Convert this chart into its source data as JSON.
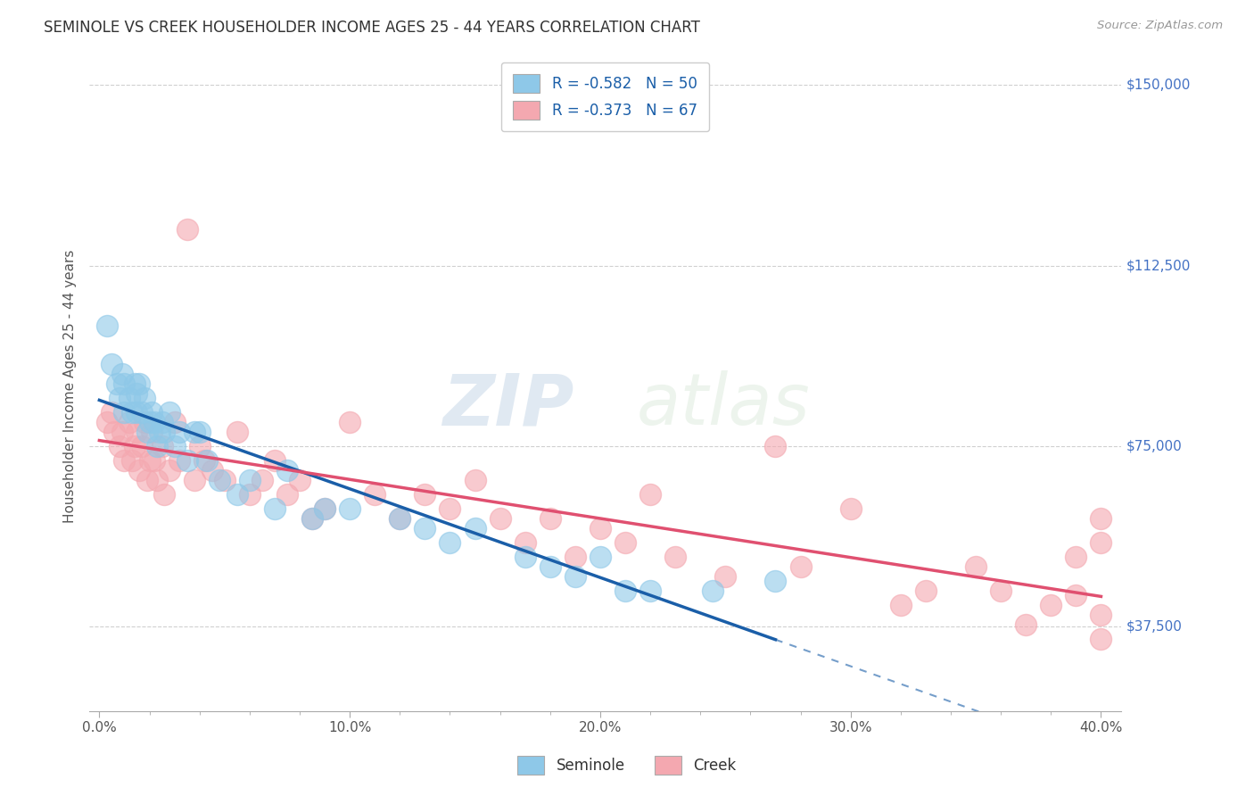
{
  "title": "SEMINOLE VS CREEK HOUSEHOLDER INCOME AGES 25 - 44 YEARS CORRELATION CHART",
  "source": "Source: ZipAtlas.com",
  "ylabel": "Householder Income Ages 25 - 44 years",
  "x_min": 0.0,
  "x_max": 0.4,
  "y_min": 20000,
  "y_max": 155000,
  "y_ticks": [
    37500,
    75000,
    112500,
    150000
  ],
  "y_tick_labels": [
    "$37,500",
    "$75,000",
    "$112,500",
    "$150,000"
  ],
  "x_tick_labels": [
    "0.0%",
    "",
    "",
    "",
    "",
    "10.0%",
    "",
    "",
    "",
    "",
    "20.0%",
    "",
    "",
    "",
    "",
    "30.0%",
    "",
    "",
    "",
    "",
    "40.0%"
  ],
  "x_ticks": [
    0.0,
    0.02,
    0.04,
    0.06,
    0.08,
    0.1,
    0.12,
    0.14,
    0.16,
    0.18,
    0.2,
    0.22,
    0.24,
    0.26,
    0.28,
    0.3,
    0.32,
    0.34,
    0.36,
    0.38,
    0.4
  ],
  "seminole_color": "#8ec8e8",
  "creek_color": "#f4a8b0",
  "seminole_line_color": "#1a5ea8",
  "creek_line_color": "#e05070",
  "seminole_R": -0.582,
  "seminole_N": 50,
  "creek_R": -0.373,
  "creek_N": 67,
  "legend_label_seminole": "R = -0.582   N = 50",
  "legend_label_creek": "R = -0.373   N = 67",
  "bottom_legend_seminole": "Seminole",
  "bottom_legend_creek": "Creek",
  "watermark_zip": "ZIP",
  "watermark_atlas": "atlas",
  "background_color": "#ffffff",
  "grid_color": "#d0d0d0",
  "seminole_x": [
    0.003,
    0.005,
    0.007,
    0.008,
    0.009,
    0.01,
    0.01,
    0.012,
    0.013,
    0.014,
    0.015,
    0.015,
    0.016,
    0.017,
    0.018,
    0.019,
    0.02,
    0.021,
    0.022,
    0.023,
    0.024,
    0.025,
    0.026,
    0.028,
    0.03,
    0.032,
    0.035,
    0.038,
    0.04,
    0.043,
    0.048,
    0.055,
    0.06,
    0.07,
    0.075,
    0.085,
    0.09,
    0.1,
    0.12,
    0.13,
    0.14,
    0.15,
    0.17,
    0.18,
    0.19,
    0.2,
    0.21,
    0.22,
    0.245,
    0.27
  ],
  "seminole_y": [
    100000,
    92000,
    88000,
    85000,
    90000,
    82000,
    88000,
    85000,
    82000,
    88000,
    86000,
    82000,
    88000,
    82000,
    85000,
    78000,
    80000,
    82000,
    80000,
    75000,
    78000,
    80000,
    78000,
    82000,
    75000,
    78000,
    72000,
    78000,
    78000,
    72000,
    68000,
    65000,
    68000,
    62000,
    70000,
    60000,
    62000,
    62000,
    60000,
    58000,
    55000,
    58000,
    52000,
    50000,
    48000,
    52000,
    45000,
    45000,
    45000,
    47000
  ],
  "creek_x": [
    0.003,
    0.005,
    0.006,
    0.008,
    0.009,
    0.01,
    0.012,
    0.013,
    0.014,
    0.015,
    0.016,
    0.017,
    0.018,
    0.019,
    0.02,
    0.021,
    0.022,
    0.023,
    0.025,
    0.026,
    0.028,
    0.03,
    0.032,
    0.035,
    0.038,
    0.04,
    0.042,
    0.045,
    0.05,
    0.055,
    0.06,
    0.065,
    0.07,
    0.075,
    0.08,
    0.085,
    0.09,
    0.1,
    0.11,
    0.12,
    0.13,
    0.14,
    0.15,
    0.16,
    0.17,
    0.18,
    0.19,
    0.2,
    0.21,
    0.22,
    0.23,
    0.25,
    0.27,
    0.28,
    0.3,
    0.32,
    0.33,
    0.35,
    0.36,
    0.37,
    0.38,
    0.39,
    0.39,
    0.4,
    0.4,
    0.4,
    0.4
  ],
  "creek_y": [
    80000,
    82000,
    78000,
    75000,
    78000,
    72000,
    80000,
    72000,
    75000,
    78000,
    70000,
    75000,
    80000,
    68000,
    72000,
    78000,
    72000,
    68000,
    75000,
    65000,
    70000,
    80000,
    72000,
    120000,
    68000,
    75000,
    72000,
    70000,
    68000,
    78000,
    65000,
    68000,
    72000,
    65000,
    68000,
    60000,
    62000,
    80000,
    65000,
    60000,
    65000,
    62000,
    68000,
    60000,
    55000,
    60000,
    52000,
    58000,
    55000,
    65000,
    52000,
    48000,
    75000,
    50000,
    62000,
    42000,
    45000,
    50000,
    45000,
    38000,
    42000,
    44000,
    52000,
    60000,
    40000,
    55000,
    35000
  ]
}
